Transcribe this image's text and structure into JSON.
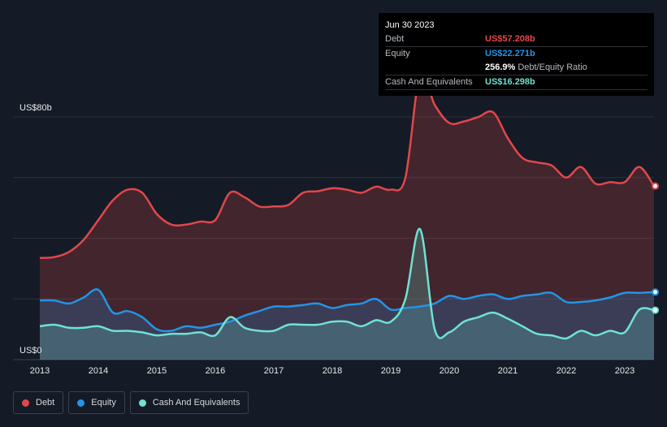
{
  "tooltip": {
    "date": "Jun 30 2023",
    "rows": [
      {
        "label": "Debt",
        "value": "US$57.208b",
        "color": "#e2474b"
      },
      {
        "label": "Equity",
        "value": "US$22.271b",
        "color": "#2394e6"
      },
      {
        "label": "",
        "value": "256.9%",
        "suffix": "Debt/Equity Ratio",
        "color": "#ffffff"
      },
      {
        "label": "Cash And Equivalents",
        "value": "US$16.298b",
        "color": "#6fe2d3"
      }
    ]
  },
  "legend": [
    {
      "label": "Debt",
      "color": "#e2474b"
    },
    {
      "label": "Equity",
      "color": "#2394e6"
    },
    {
      "label": "Cash And Equivalents",
      "color": "#6fe2d3"
    }
  ],
  "chart_data": {
    "type": "area",
    "title": "",
    "xlabel": "",
    "ylabel": "",
    "y_top_label": "US$80b",
    "y_bottom_label": "US$0",
    "ylim": [
      0,
      80
    ],
    "xlim": [
      2013,
      2023.5
    ],
    "x_ticks": [
      "2013",
      "2014",
      "2015",
      "2016",
      "2017",
      "2018",
      "2019",
      "2020",
      "2021",
      "2022",
      "2023"
    ],
    "grid": true,
    "series": [
      {
        "name": "Debt",
        "color": "#e2474b",
        "points": [
          [
            2013.0,
            33.5
          ],
          [
            2013.25,
            33.8
          ],
          [
            2013.5,
            35.5
          ],
          [
            2013.75,
            39.5
          ],
          [
            2014.0,
            46.0
          ],
          [
            2014.25,
            52.5
          ],
          [
            2014.5,
            56.0
          ],
          [
            2014.75,
            55.0
          ],
          [
            2015.0,
            48.0
          ],
          [
            2015.25,
            44.5
          ],
          [
            2015.5,
            44.5
          ],
          [
            2015.75,
            45.5
          ],
          [
            2016.0,
            46.0
          ],
          [
            2016.25,
            55.0
          ],
          [
            2016.5,
            53.5
          ],
          [
            2016.75,
            50.5
          ],
          [
            2017.0,
            50.5
          ],
          [
            2017.25,
            51.0
          ],
          [
            2017.5,
            55.0
          ],
          [
            2017.75,
            55.5
          ],
          [
            2018.0,
            56.5
          ],
          [
            2018.25,
            56.0
          ],
          [
            2018.5,
            55.0
          ],
          [
            2018.75,
            57.0
          ],
          [
            2019.0,
            56.0
          ],
          [
            2019.25,
            60.0
          ],
          [
            2019.5,
            94.0
          ],
          [
            2019.75,
            84.0
          ],
          [
            2020.0,
            78.0
          ],
          [
            2020.25,
            78.5
          ],
          [
            2020.5,
            80.0
          ],
          [
            2020.75,
            81.5
          ],
          [
            2021.0,
            73.0
          ],
          [
            2021.25,
            66.5
          ],
          [
            2021.5,
            65.0
          ],
          [
            2021.75,
            64.0
          ],
          [
            2022.0,
            60.0
          ],
          [
            2022.25,
            63.5
          ],
          [
            2022.5,
            58.0
          ],
          [
            2022.75,
            58.5
          ],
          [
            2023.0,
            58.5
          ],
          [
            2023.25,
            63.5
          ],
          [
            2023.5,
            57.208
          ]
        ]
      },
      {
        "name": "Equity",
        "color": "#2394e6",
        "points": [
          [
            2013.0,
            19.5
          ],
          [
            2013.25,
            19.5
          ],
          [
            2013.5,
            18.5
          ],
          [
            2013.75,
            20.5
          ],
          [
            2014.0,
            23.0
          ],
          [
            2014.25,
            15.5
          ],
          [
            2014.5,
            16.0
          ],
          [
            2014.75,
            14.0
          ],
          [
            2015.0,
            10.0
          ],
          [
            2015.25,
            9.5
          ],
          [
            2015.5,
            11.0
          ],
          [
            2015.75,
            10.5
          ],
          [
            2016.0,
            11.5
          ],
          [
            2016.25,
            12.5
          ],
          [
            2016.5,
            14.5
          ],
          [
            2016.75,
            16.0
          ],
          [
            2017.0,
            17.5
          ],
          [
            2017.25,
            17.5
          ],
          [
            2017.5,
            18.0
          ],
          [
            2017.75,
            18.5
          ],
          [
            2018.0,
            17.0
          ],
          [
            2018.25,
            18.0
          ],
          [
            2018.5,
            18.5
          ],
          [
            2018.75,
            20.0
          ],
          [
            2019.0,
            16.5
          ],
          [
            2019.25,
            17.0
          ],
          [
            2019.5,
            17.5
          ],
          [
            2019.75,
            18.5
          ],
          [
            2020.0,
            21.0
          ],
          [
            2020.25,
            20.0
          ],
          [
            2020.5,
            21.0
          ],
          [
            2020.75,
            21.5
          ],
          [
            2021.0,
            20.0
          ],
          [
            2021.25,
            21.0
          ],
          [
            2021.5,
            21.5
          ],
          [
            2021.75,
            22.0
          ],
          [
            2022.0,
            19.0
          ],
          [
            2022.25,
            19.0
          ],
          [
            2022.5,
            19.5
          ],
          [
            2022.75,
            20.5
          ],
          [
            2023.0,
            22.0
          ],
          [
            2023.25,
            22.0
          ],
          [
            2023.5,
            22.271
          ]
        ]
      },
      {
        "name": "Cash And Equivalents",
        "color": "#6fe2d3",
        "points": [
          [
            2013.0,
            11.0
          ],
          [
            2013.25,
            11.5
          ],
          [
            2013.5,
            10.5
          ],
          [
            2013.75,
            10.5
          ],
          [
            2014.0,
            11.0
          ],
          [
            2014.25,
            9.5
          ],
          [
            2014.5,
            9.5
          ],
          [
            2014.75,
            9.0
          ],
          [
            2015.0,
            8.0
          ],
          [
            2015.25,
            8.5
          ],
          [
            2015.5,
            8.5
          ],
          [
            2015.75,
            9.0
          ],
          [
            2016.0,
            8.0
          ],
          [
            2016.25,
            14.0
          ],
          [
            2016.5,
            10.5
          ],
          [
            2016.75,
            9.5
          ],
          [
            2017.0,
            9.5
          ],
          [
            2017.25,
            11.5
          ],
          [
            2017.5,
            11.5
          ],
          [
            2017.75,
            11.5
          ],
          [
            2018.0,
            12.5
          ],
          [
            2018.25,
            12.5
          ],
          [
            2018.5,
            11.0
          ],
          [
            2018.75,
            13.0
          ],
          [
            2019.0,
            12.5
          ],
          [
            2019.25,
            20.0
          ],
          [
            2019.5,
            43.0
          ],
          [
            2019.75,
            10.0
          ],
          [
            2020.0,
            9.0
          ],
          [
            2020.25,
            12.5
          ],
          [
            2020.5,
            14.0
          ],
          [
            2020.75,
            15.5
          ],
          [
            2021.0,
            13.5
          ],
          [
            2021.25,
            11.0
          ],
          [
            2021.5,
            8.5
          ],
          [
            2021.75,
            8.0
          ],
          [
            2022.0,
            7.0
          ],
          [
            2022.25,
            9.5
          ],
          [
            2022.5,
            8.0
          ],
          [
            2022.75,
            9.5
          ],
          [
            2023.0,
            9.0
          ],
          [
            2023.25,
            16.5
          ],
          [
            2023.5,
            16.298
          ]
        ]
      }
    ]
  }
}
